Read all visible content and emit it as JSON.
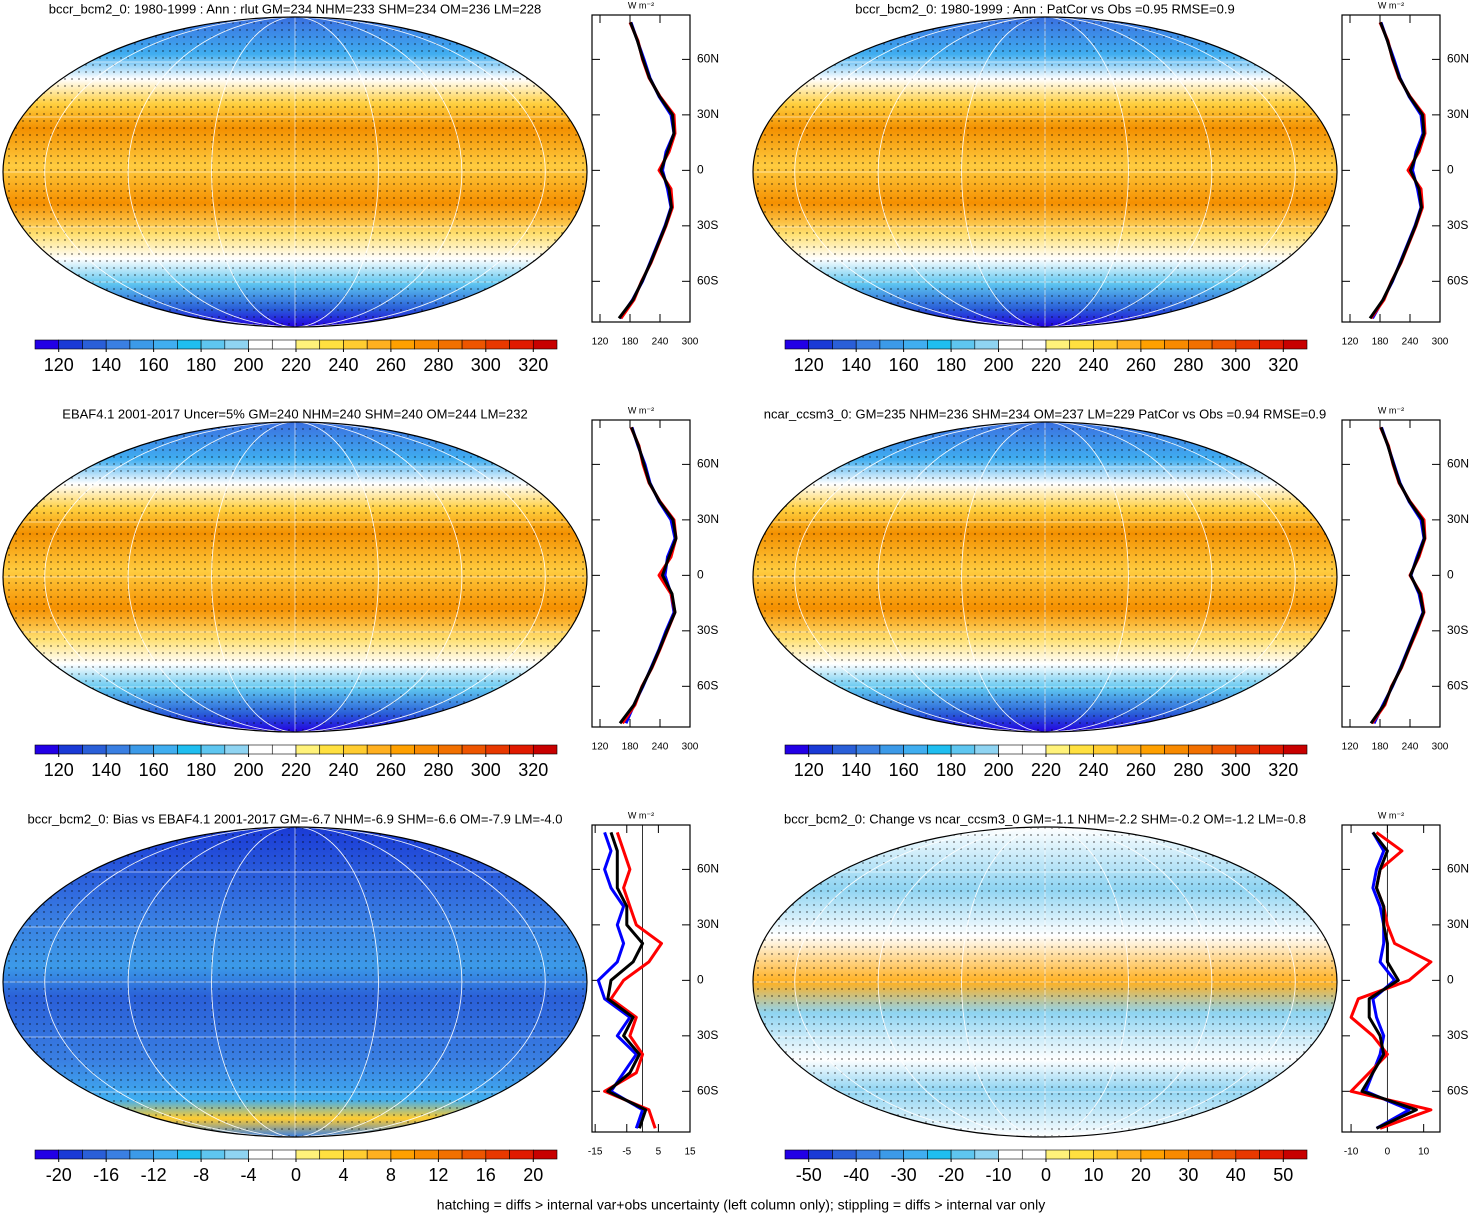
{
  "chart_data": [
    {
      "type": "map",
      "title": "bccr_bcm2_0: 1980-1999 : Ann : rlut GM=234 NHM=233 SHM=234 OM=236 LM=228",
      "colorbar": {
        "lim": [
          110,
          330
        ],
        "ticks": [
          120,
          140,
          160,
          180,
          200,
          220,
          240,
          260,
          280,
          300,
          320
        ],
        "colors": [
          "#2200e6",
          "#1a3ad6",
          "#2a5fd8",
          "#3a7fe2",
          "#3c9ae8",
          "#40aef0",
          "#1fbef0",
          "#5ec6f0",
          "#8fd4f2",
          "#ffffff",
          "#ffffff",
          "#fff27a",
          "#ffe040",
          "#ffcc30",
          "#ffb020",
          "#ffa000",
          "#f88a00",
          "#f27000",
          "#ee5500",
          "#e83800",
          "#e01a00",
          "#c80000"
        ]
      },
      "profile": {
        "type": "line",
        "units": "W m⁻²",
        "xlim": [
          104,
          300
        ],
        "xticks": [
          120,
          180,
          240,
          300
        ],
        "ylim": [
          -82,
          84
        ],
        "yticks": [
          {
            "value": -60,
            "label": "60S"
          },
          {
            "value": -30,
            "label": "30S"
          },
          0,
          {
            "value": 30,
            "label": "30N"
          },
          {
            "value": 60,
            "label": "60N"
          }
        ],
        "lat": [
          -80,
          -70,
          -60,
          -50,
          -40,
          -30,
          -20,
          -10,
          0,
          10,
          20,
          30,
          40,
          50,
          60,
          70,
          80
        ],
        "series": [
          {
            "color": "#0000ff",
            "values": [
              160,
              185,
              205,
              220,
              235,
              250,
              262,
              255,
              245,
              252,
              268,
              262,
              238,
              220,
              208,
              195,
              182
            ]
          },
          {
            "color": "#ff0000",
            "values": [
              162,
              188,
              203,
              222,
              237,
              252,
              265,
              262,
              238,
              258,
              270,
              268,
              240,
              218,
              205,
              196,
              180
            ]
          },
          {
            "color": "#000000",
            "values": [
              158,
              186,
              204,
              221,
              236,
              251,
              263,
              258,
              242,
              255,
              268,
              265,
              239,
              219,
              206,
              195,
              181
            ]
          }
        ]
      }
    },
    {
      "type": "map",
      "title": "bccr_bcm2_0: 1980-1999 : Ann : PatCor vs Obs =0.95 RMSE=0.9",
      "colorbar": {
        "lim": [
          110,
          330
        ],
        "ticks": [
          120,
          140,
          160,
          180,
          200,
          220,
          240,
          260,
          280,
          300,
          320
        ],
        "colors": [
          "#2200e6",
          "#1a3ad6",
          "#2a5fd8",
          "#3a7fe2",
          "#3c9ae8",
          "#40aef0",
          "#1fbef0",
          "#5ec6f0",
          "#8fd4f2",
          "#ffffff",
          "#ffffff",
          "#fff27a",
          "#ffe040",
          "#ffcc30",
          "#ffb020",
          "#ffa000",
          "#f88a00",
          "#f27000",
          "#ee5500",
          "#e83800",
          "#e01a00",
          "#c80000"
        ]
      },
      "profile": {
        "type": "line",
        "units": "W m⁻²",
        "xlim": [
          104,
          300
        ],
        "xticks": [
          120,
          180,
          240,
          300
        ],
        "ylim": [
          -82,
          84
        ],
        "yticks": [
          {
            "value": -60,
            "label": "60S"
          },
          {
            "value": -30,
            "label": "30S"
          },
          0,
          {
            "value": 30,
            "label": "30N"
          },
          {
            "value": 60,
            "label": "60N"
          }
        ],
        "lat": [
          -80,
          -70,
          -60,
          -50,
          -40,
          -30,
          -20,
          -10,
          0,
          10,
          20,
          30,
          40,
          50,
          60,
          70,
          80
        ],
        "series": [
          {
            "color": "#0000ff",
            "values": [
              165,
              186,
              205,
              220,
              235,
              250,
              262,
              255,
              245,
              252,
              266,
              262,
              238,
              220,
              208,
              195,
              182
            ]
          },
          {
            "color": "#ff0000",
            "values": [
              162,
              188,
              203,
              222,
              237,
              252,
              265,
              262,
              236,
              258,
              270,
              268,
              240,
              218,
              205,
              196,
              180
            ]
          },
          {
            "color": "#000000",
            "values": [
              160,
              186,
              204,
              221,
              236,
              251,
              263,
              258,
              241,
              255,
              268,
              265,
              239,
              219,
              206,
              195,
              181
            ]
          }
        ]
      }
    },
    {
      "type": "map",
      "title": "EBAF4.1 2001-2017 Uncer=5% GM=240 NHM=240 SHM=240 OM=244 LM=232",
      "colorbar": {
        "lim": [
          110,
          330
        ],
        "ticks": [
          120,
          140,
          160,
          180,
          200,
          220,
          240,
          260,
          280,
          300,
          320
        ],
        "colors": [
          "#2200e6",
          "#1a3ad6",
          "#2a5fd8",
          "#3a7fe2",
          "#3c9ae8",
          "#40aef0",
          "#1fbef0",
          "#5ec6f0",
          "#8fd4f2",
          "#ffffff",
          "#ffffff",
          "#fff27a",
          "#ffe040",
          "#ffcc30",
          "#ffb020",
          "#ffa000",
          "#f88a00",
          "#f27000",
          "#ee5500",
          "#e83800",
          "#e01a00",
          "#c80000"
        ]
      },
      "profile": {
        "type": "line",
        "units": "W m⁻²",
        "xlim": [
          104,
          300
        ],
        "xticks": [
          120,
          180,
          240,
          300
        ],
        "ylim": [
          -82,
          84
        ],
        "yticks": [
          {
            "value": -60,
            "label": "60S"
          },
          {
            "value": -30,
            "label": "30S"
          },
          0,
          {
            "value": 30,
            "label": "30N"
          },
          {
            "value": 60,
            "label": "60N"
          }
        ],
        "lat": [
          -80,
          -70,
          -60,
          -50,
          -40,
          -30,
          -20,
          -10,
          0,
          10,
          20,
          30,
          40,
          50,
          60,
          70,
          80
        ],
        "series": [
          {
            "color": "#0000ff",
            "values": [
              172,
              188,
              206,
              222,
              238,
              252,
              268,
              262,
              250,
              255,
              270,
              262,
              238,
              220,
              210,
              196,
              184
            ]
          },
          {
            "color": "#ff0000",
            "values": [
              165,
              190,
              204,
              224,
              240,
              255,
              270,
              262,
              238,
              262,
              272,
              268,
              240,
              218,
              206,
              198,
              182
            ]
          },
          {
            "color": "#000000",
            "values": [
              160,
              188,
              205,
              223,
              239,
              254,
              270,
              264,
              245,
              258,
              272,
              266,
              239,
              219,
              208,
              197,
              183
            ]
          }
        ]
      }
    },
    {
      "type": "map",
      "title": "ncar_ccsm3_0: GM=235 NHM=236 SHM=234 OM=237 LM=229 PatCor vs Obs =0.94 RMSE=0.9",
      "colorbar": {
        "lim": [
          110,
          330
        ],
        "ticks": [
          120,
          140,
          160,
          180,
          200,
          220,
          240,
          260,
          280,
          300,
          320
        ],
        "colors": [
          "#2200e6",
          "#1a3ad6",
          "#2a5fd8",
          "#3a7fe2",
          "#3c9ae8",
          "#40aef0",
          "#1fbef0",
          "#5ec6f0",
          "#8fd4f2",
          "#ffffff",
          "#ffffff",
          "#fff27a",
          "#ffe040",
          "#ffcc30",
          "#ffb020",
          "#ffa000",
          "#f88a00",
          "#f27000",
          "#ee5500",
          "#e83800",
          "#e01a00",
          "#c80000"
        ]
      },
      "profile": {
        "type": "line",
        "units": "W m⁻²",
        "xlim": [
          104,
          300
        ],
        "xticks": [
          120,
          180,
          240,
          300
        ],
        "ylim": [
          -82,
          84
        ],
        "yticks": [
          {
            "value": -60,
            "label": "60S"
          },
          {
            "value": -30,
            "label": "30S"
          },
          0,
          {
            "value": 30,
            "label": "30N"
          },
          {
            "value": 60,
            "label": "60N"
          }
        ],
        "lat": [
          -80,
          -70,
          -60,
          -50,
          -40,
          -30,
          -20,
          -10,
          0,
          10,
          20,
          30,
          40,
          50,
          60,
          70,
          80
        ],
        "series": [
          {
            "color": "#0000ff",
            "values": [
              168,
              186,
              205,
              221,
              236,
              251,
              266,
              258,
              242,
              254,
              268,
              262,
              238,
              220,
              208,
              196,
              183
            ]
          },
          {
            "color": "#ff0000",
            "values": [
              164,
              190,
              203,
              223,
              238,
              254,
              268,
              262,
              240,
              258,
              270,
              268,
              240,
              218,
              206,
              197,
              181
            ]
          },
          {
            "color": "#000000",
            "values": [
              162,
              188,
              204,
              222,
              237,
              252,
              267,
              260,
              241,
              256,
              269,
              265,
              239,
              219,
              207,
              196,
              182
            ]
          }
        ]
      }
    },
    {
      "type": "map",
      "title": "bccr_bcm2_0: Bias vs EBAF4.1 2001-2017 GM=-6.7 NHM=-6.9 SHM=-6.6 OM=-7.9 LM=-4.0",
      "colorbar": {
        "lim": [
          -22,
          22
        ],
        "ticks": [
          -20,
          -16,
          -12,
          -8,
          -4,
          0,
          4,
          8,
          12,
          16,
          20
        ],
        "colors": [
          "#2200e6",
          "#1a3ad6",
          "#2a5fd8",
          "#3a7fe2",
          "#3c9ae8",
          "#40aef0",
          "#1fbef0",
          "#5ec6f0",
          "#8fd4f2",
          "#ffffff",
          "#ffffff",
          "#fff27a",
          "#ffe040",
          "#ffcc30",
          "#ffb020",
          "#ffa000",
          "#f88a00",
          "#f27000",
          "#ee5500",
          "#e83800",
          "#e01a00",
          "#c80000"
        ]
      },
      "profile": {
        "type": "line",
        "units": "W m⁻²",
        "xlim": [
          -16,
          15
        ],
        "xticks": [
          -15,
          -5,
          5,
          15
        ],
        "ylim": [
          -82,
          84
        ],
        "yticks": [
          {
            "value": -60,
            "label": "60S"
          },
          {
            "value": -30,
            "label": "30S"
          },
          0,
          {
            "value": 30,
            "label": "30N"
          },
          {
            "value": 60,
            "label": "60N"
          }
        ],
        "lat": [
          -80,
          -70,
          -60,
          -50,
          -40,
          -30,
          -20,
          -10,
          0,
          10,
          20,
          30,
          40,
          50,
          60,
          70,
          80
        ],
        "series": [
          {
            "color": "#0000ff",
            "values": [
              -2,
              0,
              -10,
              -6,
              -2,
              -8,
              -4,
              -12,
              -14,
              -8,
              -6,
              -8,
              -6,
              -10,
              -12,
              -10,
              -12
            ]
          },
          {
            "color": "#ff0000",
            "values": [
              4,
              2,
              -12,
              -2,
              0,
              -4,
              -2,
              -10,
              -6,
              2,
              6,
              -2,
              -4,
              -6,
              -4,
              -6,
              -8
            ]
          },
          {
            "color": "#000000",
            "values": [
              -1,
              1,
              -11,
              -4,
              -1,
              -6,
              -3,
              -11,
              -10,
              -3,
              0,
              -5,
              -5,
              -8,
              -8,
              -8,
              -10
            ]
          }
        ]
      }
    },
    {
      "type": "map",
      "title": "bccr_bcm2_0: Change vs ncar_ccsm3_0 GM=-1.1 NHM=-2.2 SHM=-0.2 OM=-1.2 LM=-0.8",
      "colorbar": {
        "lim": [
          -55,
          55
        ],
        "ticks": [
          -50,
          -40,
          -30,
          -20,
          -10,
          0,
          10,
          20,
          30,
          40,
          50
        ],
        "colors": [
          "#2200e6",
          "#1a3ad6",
          "#2a5fd8",
          "#3a7fe2",
          "#3c9ae8",
          "#40aef0",
          "#1fbef0",
          "#5ec6f0",
          "#8fd4f2",
          "#ffffff",
          "#ffffff",
          "#fff27a",
          "#ffe040",
          "#ffcc30",
          "#ffb020",
          "#ffa000",
          "#f88a00",
          "#f27000",
          "#ee5500",
          "#e83800",
          "#e01a00",
          "#c80000"
        ]
      },
      "profile": {
        "type": "line",
        "units": "W m⁻²",
        "xlim": [
          -12.5,
          14.5
        ],
        "xticks": [
          -10,
          0,
          10
        ],
        "ylim": [
          -82,
          84
        ],
        "yticks": [
          {
            "value": -60,
            "label": "60S"
          },
          {
            "value": -30,
            "label": "30S"
          },
          0,
          {
            "value": 30,
            "label": "30N"
          },
          {
            "value": 60,
            "label": "60N"
          }
        ],
        "lat": [
          -80,
          -70,
          -60,
          -50,
          -40,
          -30,
          -20,
          -10,
          0,
          10,
          20,
          30,
          40,
          50,
          60,
          70,
          80
        ],
        "series": [
          {
            "color": "#0000ff",
            "values": [
              -3,
              6,
              -6,
              -4,
              -2,
              -1,
              -3,
              -4,
              2,
              -2,
              -1,
              -1,
              -2,
              -4,
              -3,
              -1,
              -4
            ]
          },
          {
            "color": "#ff0000",
            "values": [
              -2,
              12,
              -10,
              -5,
              0,
              -4,
              -10,
              -8,
              6,
              12,
              2,
              0,
              -1,
              -3,
              -2,
              4,
              -3
            ]
          },
          {
            "color": "#000000",
            "values": [
              -3,
              8,
              -7,
              -4,
              -1,
              -2,
              -5,
              -5,
              3,
              0,
              0,
              -1,
              -1,
              -3,
              -2,
              0,
              -4
            ]
          }
        ]
      }
    }
  ],
  "footnote": "hatching = diffs > internal var+obs uncertainty (left column only); stippling = diffs > internal var only"
}
